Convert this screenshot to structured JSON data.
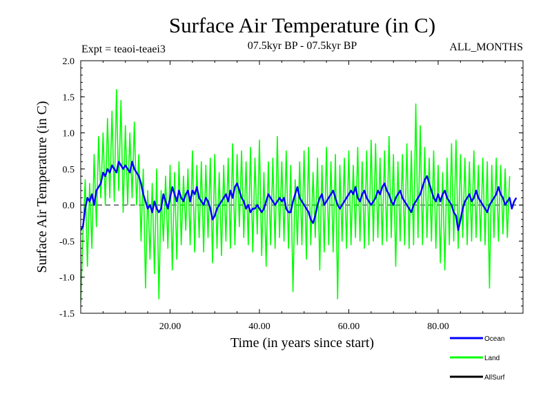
{
  "chart_data": {
    "type": "line",
    "title": "Surface Air Temperature (in C)",
    "subtitle": "07.5kyr BP - 07.5kyr BP",
    "experiment": "Expt = teaoi-teaei3",
    "season": "ALL_MONTHS",
    "xlabel": "Time (in years since start)",
    "ylabel": "Surface Air Temperature (in C)",
    "xlim": [
      0,
      99
    ],
    "ylim": [
      -1.5,
      2.0
    ],
    "xticks": [
      20,
      40,
      60,
      80
    ],
    "xtick_labels": [
      "20.00",
      "40.00",
      "60.00",
      "80.00"
    ],
    "yticks": [
      -1.5,
      -1.0,
      -0.5,
      0.0,
      0.5,
      1.0,
      1.5,
      2.0
    ],
    "ytick_labels": [
      "-1.5",
      "-1.0",
      "-0.5",
      "0.0",
      "0.5",
      "1.0",
      "1.5",
      "2.0"
    ],
    "reference_line": 0.0,
    "x_step": 0.5,
    "series": [
      {
        "name": "Ocean",
        "color": "#0000ff",
        "values": [
          -0.35,
          -0.3,
          -0.05,
          0.1,
          0.05,
          0.15,
          0.0,
          0.2,
          0.25,
          0.3,
          0.45,
          0.4,
          0.5,
          0.45,
          0.55,
          0.5,
          0.45,
          0.6,
          0.55,
          0.5,
          0.55,
          0.5,
          0.45,
          0.6,
          0.5,
          0.45,
          0.4,
          0.3,
          0.15,
          0.05,
          -0.05,
          0.0,
          -0.1,
          0.05,
          -0.05,
          -0.1,
          -0.05,
          0.15,
          0.05,
          -0.05,
          0.1,
          0.25,
          0.15,
          0.05,
          0.2,
          0.1,
          0.05,
          0.15,
          0.2,
          0.05,
          0.2,
          0.15,
          0.25,
          0.1,
          0.05,
          0.0,
          0.1,
          0.05,
          -0.05,
          -0.2,
          -0.15,
          -0.05,
          0.0,
          0.05,
          0.1,
          0.15,
          0.05,
          0.2,
          0.1,
          0.25,
          0.3,
          0.2,
          0.1,
          0.05,
          -0.05,
          0.0,
          -0.1,
          -0.05,
          -0.05,
          0.0,
          -0.05,
          -0.1,
          -0.05,
          0.05,
          0.15,
          0.1,
          0.05,
          0.0,
          0.05,
          0.1,
          0.05,
          0.1,
          -0.05,
          -0.1,
          -0.1,
          0.05,
          0.15,
          0.25,
          0.1,
          0.05,
          0.0,
          -0.05,
          -0.1,
          -0.2,
          -0.25,
          -0.15,
          0.0,
          0.1,
          0.15,
          0.0,
          0.05,
          0.1,
          0.15,
          0.2,
          0.1,
          0.0,
          -0.05,
          0.0,
          0.05,
          0.1,
          0.15,
          0.2,
          0.15,
          0.25,
          0.1,
          0.05,
          0.15,
          0.2,
          0.1,
          0.05,
          0.0,
          0.05,
          0.1,
          0.2,
          0.15,
          0.25,
          0.3,
          0.2,
          0.15,
          0.05,
          0.0,
          0.1,
          0.15,
          0.2,
          0.1,
          0.05,
          0.0,
          -0.05,
          -0.1,
          0.0,
          0.05,
          0.1,
          0.15,
          0.25,
          0.35,
          0.4,
          0.3,
          0.2,
          0.1,
          0.05,
          0.15,
          0.05,
          0.15,
          0.2,
          0.1,
          0.05,
          0.0,
          -0.1,
          -0.15,
          -0.35,
          -0.2,
          -0.05,
          0.05,
          0.1,
          0.15,
          0.05,
          0.1,
          0.2,
          0.1,
          0.05,
          0.0,
          -0.05,
          -0.1,
          0.0,
          0.05,
          0.1,
          0.15,
          0.25,
          0.15,
          0.1,
          0.0,
          0.05,
          0.1,
          -0.05,
          0.05,
          0.1
        ]
      },
      {
        "name": "Land",
        "color": "#00ff00",
        "values": [
          -1.35,
          -0.4,
          0.35,
          -0.85,
          0.3,
          -0.6,
          0.7,
          -0.3,
          0.95,
          0.1,
          1.0,
          0.0,
          1.2,
          0.1,
          1.3,
          0.05,
          1.6,
          0.2,
          1.45,
          -0.1,
          1.1,
          0.0,
          1.0,
          0.1,
          1.15,
          0.0,
          0.7,
          -0.5,
          0.5,
          -1.15,
          0.2,
          -0.75,
          0.3,
          -0.95,
          0.5,
          -1.3,
          0.2,
          -0.5,
          0.4,
          -0.6,
          0.55,
          -0.9,
          0.45,
          -0.75,
          0.6,
          -0.55,
          0.4,
          -0.35,
          0.5,
          -0.55,
          0.75,
          -0.65,
          0.55,
          -0.45,
          0.6,
          -0.65,
          0.55,
          -0.45,
          0.65,
          -0.8,
          0.7,
          -0.6,
          0.45,
          -0.7,
          0.55,
          -0.5,
          0.65,
          -0.6,
          0.85,
          -0.55,
          0.7,
          -0.3,
          0.75,
          -0.45,
          0.6,
          -0.55,
          0.8,
          -0.65,
          0.65,
          -0.4,
          0.9,
          -0.7,
          0.45,
          -0.85,
          0.6,
          -0.55,
          0.65,
          -0.6,
          0.95,
          -0.45,
          0.6,
          -0.5,
          0.75,
          -0.6,
          0.55,
          -1.2,
          0.35,
          -0.55,
          0.6,
          -0.55,
          0.75,
          -0.75,
          0.8,
          -0.55,
          0.45,
          -0.45,
          0.65,
          -0.9,
          0.55,
          -0.65,
          0.8,
          -0.55,
          0.6,
          -0.65,
          0.7,
          -1.3,
          0.55,
          -0.5,
          0.65,
          -0.6,
          0.75,
          -0.55,
          0.55,
          -0.45,
          0.8,
          -0.5,
          0.6,
          -0.6,
          0.75,
          -0.55,
          0.9,
          -0.5,
          0.85,
          -0.45,
          0.65,
          -0.55,
          0.75,
          -0.5,
          0.95,
          -0.45,
          0.7,
          -0.85,
          0.6,
          -0.5,
          0.7,
          -0.55,
          0.85,
          -0.6,
          0.75,
          -0.55,
          1.4,
          -0.45,
          1.1,
          -0.55,
          0.8,
          -0.45,
          0.65,
          -0.5,
          0.75,
          -0.6,
          0.55,
          -0.8,
          0.45,
          -0.9,
          0.65,
          -0.55,
          0.85,
          -0.5,
          0.9,
          -0.6,
          0.7,
          -0.45,
          0.65,
          -0.55,
          0.6,
          -0.5,
          0.75,
          -0.45,
          0.55,
          -0.5,
          0.65,
          -0.55,
          0.6,
          -1.15,
          0.55,
          -0.45,
          0.65,
          -0.5,
          0.55,
          -0.4,
          0.5,
          -0.45,
          0.4
        ]
      },
      {
        "name": "AllSurf",
        "color": "#000000",
        "values": []
      }
    ]
  }
}
